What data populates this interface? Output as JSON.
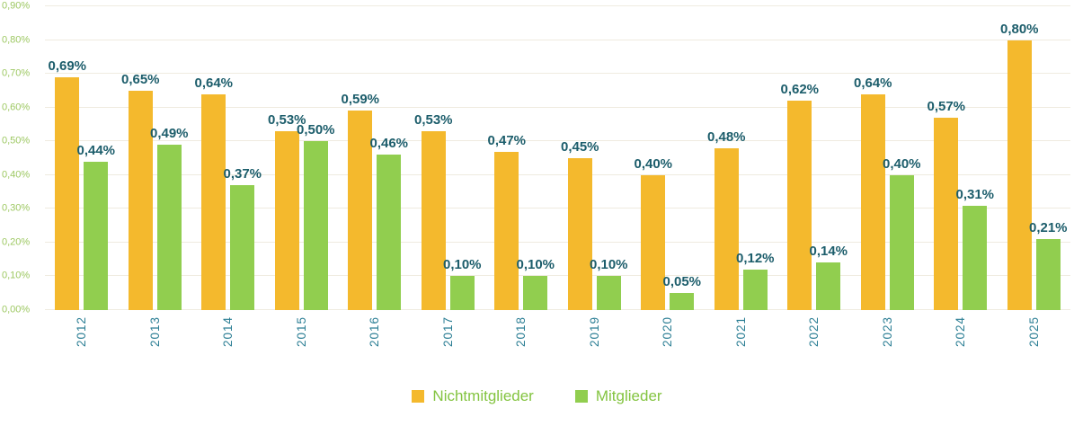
{
  "chart_data": {
    "type": "bar",
    "title": "",
    "xlabel": "",
    "ylabel": "",
    "categories": [
      "2012",
      "2013",
      "2014",
      "2015",
      "2016",
      "2017",
      "2018",
      "2019",
      "2020",
      "2021",
      "2022",
      "2023",
      "2024",
      "2025"
    ],
    "series": [
      {
        "name": "Nichtmitglieder",
        "color": "#F4B92D",
        "values": [
          0.69,
          0.65,
          0.64,
          0.53,
          0.59,
          0.53,
          0.47,
          0.45,
          0.4,
          0.48,
          0.62,
          0.64,
          0.57,
          0.8
        ],
        "labels": [
          "0,69%",
          "0,65%",
          "0,64%",
          "0,53%",
          "0,59%",
          "0,53%",
          "0,47%",
          "0,45%",
          "0,40%",
          "0,48%",
          "0,62%",
          "0,64%",
          "0,57%",
          "0,80%"
        ]
      },
      {
        "name": "Mitglieder",
        "color": "#91CE4F",
        "values": [
          0.44,
          0.49,
          0.37,
          0.5,
          0.46,
          0.1,
          0.1,
          0.1,
          0.05,
          0.12,
          0.14,
          0.4,
          0.31,
          0.21
        ],
        "labels": [
          "0,44%",
          "0,49%",
          "0,37%",
          "0,50%",
          "0,46%",
          "0,10%",
          "0,10%",
          "0,10%",
          "0,05%",
          "0,12%",
          "0,14%",
          "0,40%",
          "0,31%",
          "0,21%"
        ]
      }
    ],
    "y_ticks": [
      "0,00%",
      "0,10%",
      "0,20%",
      "0,30%",
      "0,40%",
      "0,50%",
      "0,60%",
      "0,70%",
      "0,80%",
      "0,90%"
    ],
    "ylim": [
      0,
      0.9
    ],
    "grid": true,
    "legend_position": "bottom"
  },
  "colors": {
    "background": "#FFFFFF",
    "bar_orange": "#F4B92D",
    "bar_green": "#91CE4F",
    "value_label": "#1C5D6B",
    "y_tick": "#9DC862",
    "year_label": "#2D7F95",
    "gridline": "#EFEBE0",
    "legend_text": "#84C441"
  }
}
